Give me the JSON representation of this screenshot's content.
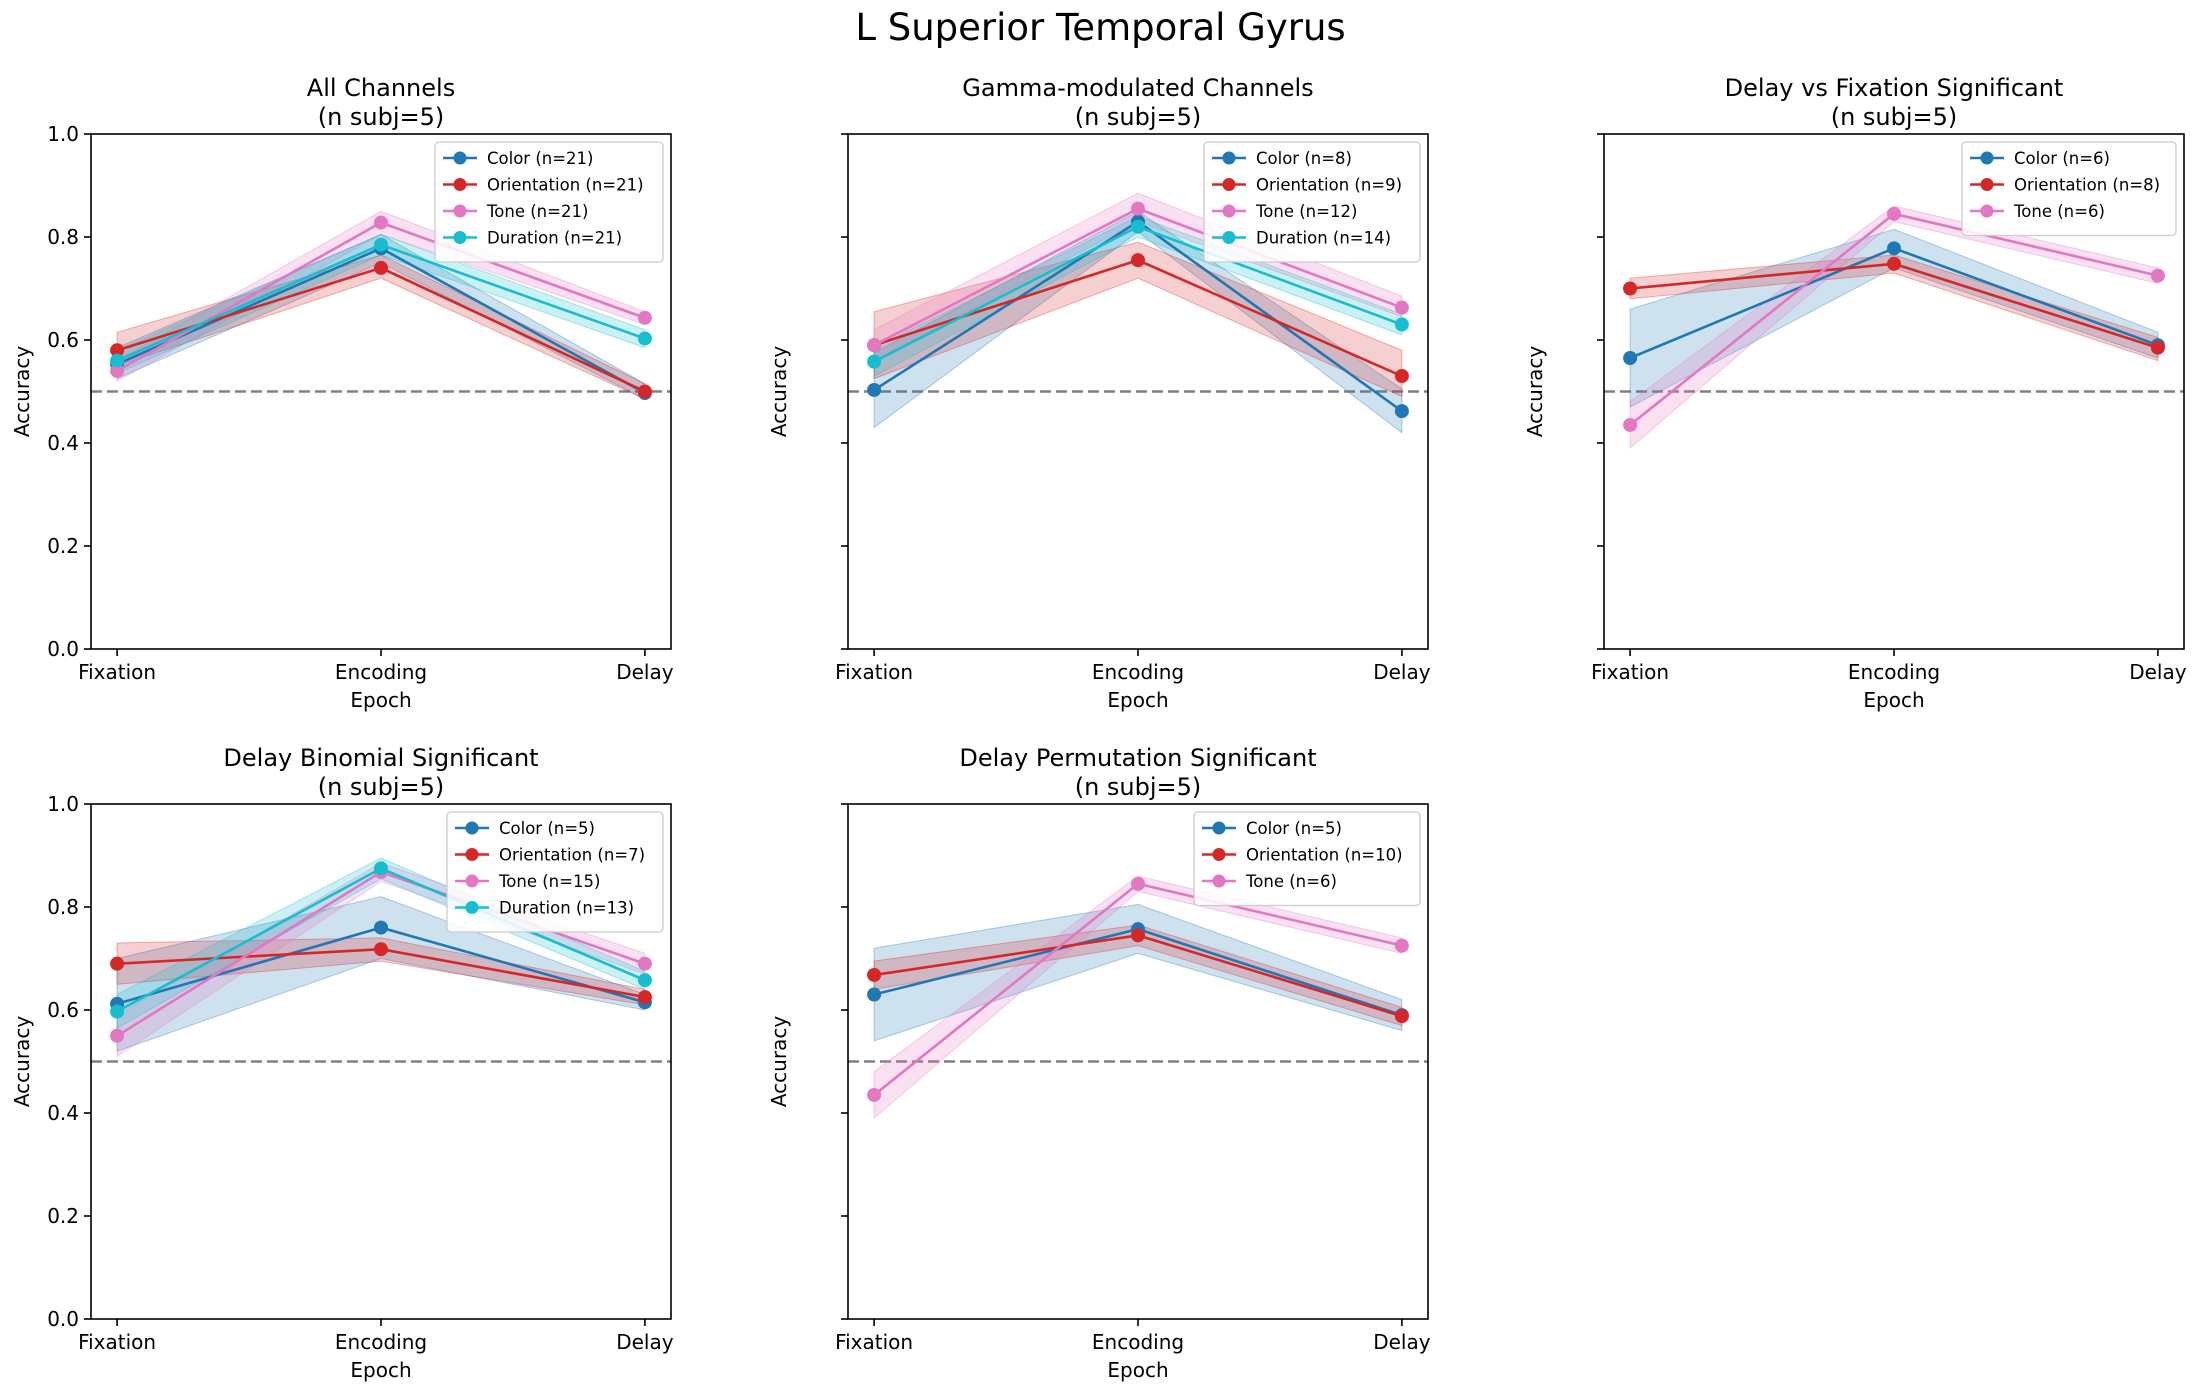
{
  "figure": {
    "title": "L Superior Temporal Gyrus",
    "colors": {
      "color": "#1f77b4",
      "orientation": "#d62728",
      "tone": "#e377c2",
      "duration": "#17becf",
      "chance": "#808080"
    }
  },
  "chart_data": [
    {
      "type": "line",
      "title": "All Channels",
      "subtitle": "(n subj=5)",
      "xlabel": "Epoch",
      "ylabel": "Accuracy",
      "categories": [
        "Fixation",
        "Encoding",
        "Delay"
      ],
      "ylim": [
        0,
        1
      ],
      "yticks": [
        "0.0",
        "0.2",
        "0.4",
        "0.6",
        "0.8",
        "1.0"
      ],
      "chance_line": 0.5,
      "legend_position": "upper right",
      "series": [
        {
          "name": "Color (n=21)",
          "color": "#1f77b4",
          "values": [
            0.553,
            0.778,
            0.497
          ],
          "lower": [
            0.525,
            0.75,
            0.485
          ],
          "upper": [
            0.585,
            0.805,
            0.515
          ]
        },
        {
          "name": "Orientation (n=21)",
          "color": "#d62728",
          "values": [
            0.58,
            0.74,
            0.5
          ],
          "lower": [
            0.55,
            0.72,
            0.485
          ],
          "upper": [
            0.615,
            0.765,
            0.515
          ]
        },
        {
          "name": "Tone (n=21)",
          "color": "#e377c2",
          "values": [
            0.54,
            0.828,
            0.643
          ],
          "lower": [
            0.52,
            0.805,
            0.63
          ],
          "upper": [
            0.56,
            0.85,
            0.655
          ]
        },
        {
          "name": "Duration (n=21)",
          "color": "#17becf",
          "values": [
            0.56,
            0.785,
            0.603
          ],
          "lower": [
            0.535,
            0.765,
            0.585
          ],
          "upper": [
            0.58,
            0.805,
            0.62
          ]
        }
      ]
    },
    {
      "type": "line",
      "title": "Gamma-modulated Channels",
      "subtitle": "(n subj=5)",
      "xlabel": "Epoch",
      "ylabel": "Accuracy",
      "categories": [
        "Fixation",
        "Encoding",
        "Delay"
      ],
      "ylim": [
        0,
        1
      ],
      "yticks": [
        "",
        "",
        "",
        "",
        "",
        ""
      ],
      "chance_line": 0.5,
      "legend_position": "upper right",
      "series": [
        {
          "name": "Color (n=8)",
          "color": "#1f77b4",
          "values": [
            0.503,
            0.83,
            0.462
          ],
          "lower": [
            0.43,
            0.81,
            0.42
          ],
          "upper": [
            0.575,
            0.85,
            0.505
          ]
        },
        {
          "name": "Orientation (n=9)",
          "color": "#d62728",
          "values": [
            0.59,
            0.755,
            0.53
          ],
          "lower": [
            0.525,
            0.72,
            0.49
          ],
          "upper": [
            0.655,
            0.79,
            0.58
          ]
        },
        {
          "name": "Tone (n=12)",
          "color": "#e377c2",
          "values": [
            0.59,
            0.855,
            0.663
          ],
          "lower": [
            0.56,
            0.83,
            0.645
          ],
          "upper": [
            0.62,
            0.885,
            0.685
          ]
        },
        {
          "name": "Duration (n=14)",
          "color": "#17becf",
          "values": [
            0.558,
            0.82,
            0.63
          ],
          "lower": [
            0.53,
            0.8,
            0.61
          ],
          "upper": [
            0.585,
            0.84,
            0.65
          ]
        }
      ]
    },
    {
      "type": "line",
      "title": "Delay vs Fixation Significant",
      "subtitle": "(n subj=5)",
      "xlabel": "Epoch",
      "ylabel": "Accuracy",
      "categories": [
        "Fixation",
        "Encoding",
        "Delay"
      ],
      "ylim": [
        0,
        1
      ],
      "yticks": [
        "",
        "",
        "",
        "",
        "",
        ""
      ],
      "chance_line": 0.5,
      "legend_position": "upper right",
      "series": [
        {
          "name": "Color (n=6)",
          "color": "#1f77b4",
          "values": [
            0.565,
            0.778,
            0.59
          ],
          "lower": [
            0.47,
            0.74,
            0.565
          ],
          "upper": [
            0.66,
            0.815,
            0.615
          ]
        },
        {
          "name": "Orientation (n=8)",
          "color": "#d62728",
          "values": [
            0.7,
            0.748,
            0.585
          ],
          "lower": [
            0.68,
            0.73,
            0.56
          ],
          "upper": [
            0.72,
            0.765,
            0.605
          ]
        },
        {
          "name": "Tone (n=6)",
          "color": "#e377c2",
          "values": [
            0.435,
            0.845,
            0.725
          ],
          "lower": [
            0.39,
            0.83,
            0.71
          ],
          "upper": [
            0.48,
            0.86,
            0.74
          ]
        }
      ]
    },
    {
      "type": "line",
      "title": "Delay Binomial Significant",
      "subtitle": "(n subj=5)",
      "xlabel": "Epoch",
      "ylabel": "Accuracy",
      "categories": [
        "Fixation",
        "Encoding",
        "Delay"
      ],
      "ylim": [
        0,
        1
      ],
      "yticks": [
        "0.0",
        "0.2",
        "0.4",
        "0.6",
        "0.8",
        "1.0"
      ],
      "chance_line": 0.5,
      "legend_position": "upper right",
      "series": [
        {
          "name": "Color (n=5)",
          "color": "#1f77b4",
          "values": [
            0.612,
            0.76,
            0.615
          ],
          "lower": [
            0.52,
            0.7,
            0.6
          ],
          "upper": [
            0.7,
            0.82,
            0.63
          ]
        },
        {
          "name": "Orientation (n=7)",
          "color": "#d62728",
          "values": [
            0.69,
            0.718,
            0.625
          ],
          "lower": [
            0.65,
            0.695,
            0.61
          ],
          "upper": [
            0.73,
            0.74,
            0.64
          ]
        },
        {
          "name": "Tone (n=15)",
          "color": "#e377c2",
          "values": [
            0.55,
            0.868,
            0.69
          ],
          "lower": [
            0.51,
            0.85,
            0.67
          ],
          "upper": [
            0.59,
            0.885,
            0.71
          ]
        },
        {
          "name": "Duration (n=13)",
          "color": "#17becf",
          "values": [
            0.597,
            0.875,
            0.658
          ],
          "lower": [
            0.565,
            0.855,
            0.64
          ],
          "upper": [
            0.63,
            0.895,
            0.675
          ]
        }
      ]
    },
    {
      "type": "line",
      "title": "Delay Permutation Significant",
      "subtitle": "(n subj=5)",
      "xlabel": "Epoch",
      "ylabel": "Accuracy",
      "categories": [
        "Fixation",
        "Encoding",
        "Delay"
      ],
      "ylim": [
        0,
        1
      ],
      "yticks": [
        "",
        "",
        "",
        "",
        "",
        ""
      ],
      "chance_line": 0.5,
      "legend_position": "upper right",
      "series": [
        {
          "name": "Color (n=5)",
          "color": "#1f77b4",
          "values": [
            0.63,
            0.757,
            0.59
          ],
          "lower": [
            0.54,
            0.71,
            0.56
          ],
          "upper": [
            0.72,
            0.805,
            0.62
          ]
        },
        {
          "name": "Orientation (n=10)",
          "color": "#d62728",
          "values": [
            0.668,
            0.745,
            0.588
          ],
          "lower": [
            0.64,
            0.725,
            0.57
          ],
          "upper": [
            0.695,
            0.765,
            0.605
          ]
        },
        {
          "name": "Tone (n=6)",
          "color": "#e377c2",
          "values": [
            0.435,
            0.845,
            0.725
          ],
          "lower": [
            0.39,
            0.83,
            0.71
          ],
          "upper": [
            0.48,
            0.86,
            0.74
          ]
        }
      ]
    }
  ]
}
